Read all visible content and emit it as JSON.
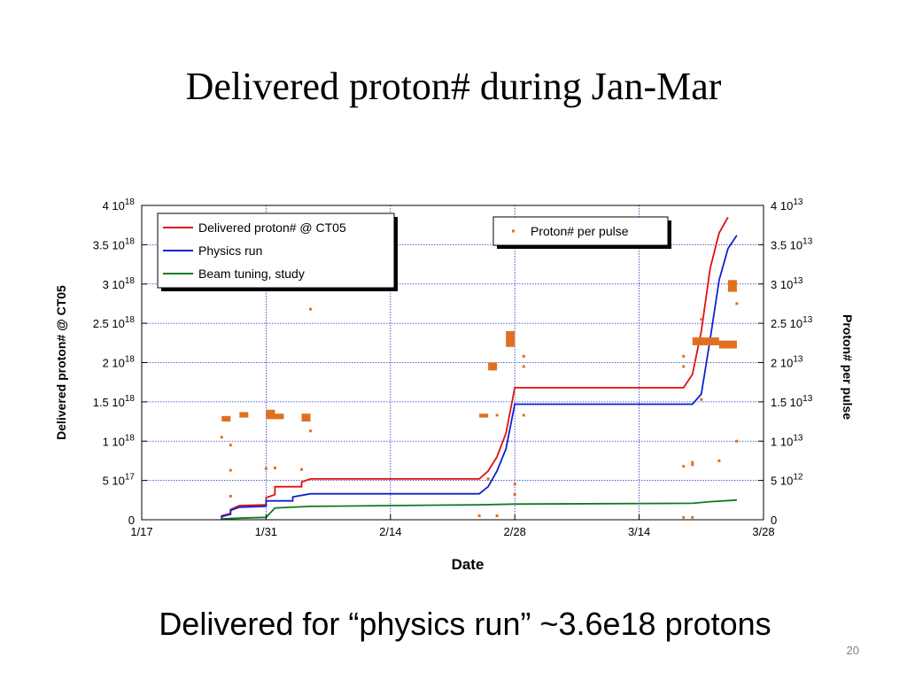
{
  "slide": {
    "title": "Delivered proton# during Jan-Mar",
    "caption": "Delivered for “physics run” ~3.6e18 protons",
    "page_number": "20"
  },
  "chart_data": {
    "type": "line",
    "x_unit": "date",
    "xlabel": "Date",
    "ylabel_left": "Delivered proton# @ CT05",
    "ylabel_right": "Proton# per pulse",
    "xlim": [
      "2011-01-17",
      "2011-03-28"
    ],
    "x_ticks": [
      {
        "x": "2011-01-17",
        "label": "1/17"
      },
      {
        "x": "2011-01-31",
        "label": "1/31"
      },
      {
        "x": "2011-02-14",
        "label": "2/14"
      },
      {
        "x": "2011-02-28",
        "label": "2/28"
      },
      {
        "x": "2011-03-14",
        "label": "3/14"
      },
      {
        "x": "2011-03-28",
        "label": "3/28"
      }
    ],
    "ylim_left": [
      0,
      4e+18
    ],
    "ylim_right": [
      0,
      40000000000000.0
    ],
    "left_ticks": [
      {
        "v": 0,
        "m": "0",
        "e": ""
      },
      {
        "v": 5e+17,
        "m": "5 10",
        "e": "17"
      },
      {
        "v": 1e+18,
        "m": "1 10",
        "e": "18"
      },
      {
        "v": 1.5e+18,
        "m": "1.5 10",
        "e": "18"
      },
      {
        "v": 2e+18,
        "m": "2 10",
        "e": "18"
      },
      {
        "v": 2.5e+18,
        "m": "2.5 10",
        "e": "18"
      },
      {
        "v": 3e+18,
        "m": "3 10",
        "e": "18"
      },
      {
        "v": 3.5e+18,
        "m": "3.5 10",
        "e": "18"
      },
      {
        "v": 4e+18,
        "m": "4 10",
        "e": "18"
      }
    ],
    "right_ticks": [
      {
        "v": 0,
        "m": "0",
        "e": ""
      },
      {
        "v": 5000000000000.0,
        "m": "5 10",
        "e": "12"
      },
      {
        "v": 10000000000000.0,
        "m": "1 10",
        "e": "13"
      },
      {
        "v": 15000000000000.0,
        "m": "1.5 10",
        "e": "13"
      },
      {
        "v": 20000000000000.0,
        "m": "2 10",
        "e": "13"
      },
      {
        "v": 25000000000000.0,
        "m": "2.5 10",
        "e": "13"
      },
      {
        "v": 30000000000000.0,
        "m": "3 10",
        "e": "13"
      },
      {
        "v": 35000000000000.0,
        "m": "3.5 10",
        "e": "13"
      },
      {
        "v": 40000000000000.0,
        "m": "4 10",
        "e": "13"
      }
    ],
    "grid": true,
    "legend_left": "top-left",
    "legend_right": "top-right",
    "series": [
      {
        "name": "Delivered proton# @ CT05",
        "color": "#e01010",
        "axis": "left",
        "points": [
          [
            "2011-01-26",
            0.0
          ],
          [
            "2011-01-26",
            5e+16
          ],
          [
            "2011-01-27",
            8e+16
          ],
          [
            "2011-01-27",
            1.3e+17
          ],
          [
            "2011-01-28",
            1.8e+17
          ],
          [
            "2011-01-31",
            1.9e+17
          ],
          [
            "2011-01-31",
            2.8e+17
          ],
          [
            "2011-02-01",
            3.2e+17
          ],
          [
            "2011-02-01",
            4.2e+17
          ],
          [
            "2011-02-04",
            4.2e+17
          ],
          [
            "2011-02-04",
            4.8e+17
          ],
          [
            "2011-02-05",
            5.2e+17
          ],
          [
            "2011-02-24",
            5.2e+17
          ],
          [
            "2011-02-25",
            6.2e+17
          ],
          [
            "2011-02-26",
            8e+17
          ],
          [
            "2011-02-27",
            1.1e+18
          ],
          [
            "2011-02-28",
            1.68e+18
          ],
          [
            "2011-03-19",
            1.68e+18
          ],
          [
            "2011-03-20",
            1.85e+18
          ],
          [
            "2011-03-21",
            2.4e+18
          ],
          [
            "2011-03-22",
            3.2e+18
          ],
          [
            "2011-03-23",
            3.65e+18
          ],
          [
            "2011-03-24",
            3.85e+18
          ]
        ]
      },
      {
        "name": "Physics run",
        "color": "#1020d0",
        "axis": "left",
        "points": [
          [
            "2011-01-26",
            0.0
          ],
          [
            "2011-01-26",
            4e+16
          ],
          [
            "2011-01-27",
            7e+16
          ],
          [
            "2011-01-27",
            1.2e+17
          ],
          [
            "2011-01-28",
            1.6e+17
          ],
          [
            "2011-01-31",
            1.7e+17
          ],
          [
            "2011-01-31",
            2.4e+17
          ],
          [
            "2011-02-03",
            2.4e+17
          ],
          [
            "2011-02-03",
            2.9e+17
          ],
          [
            "2011-02-05",
            3.3e+17
          ],
          [
            "2011-02-24",
            3.3e+17
          ],
          [
            "2011-02-25",
            4.2e+17
          ],
          [
            "2011-02-26",
            6.2e+17
          ],
          [
            "2011-02-27",
            9e+17
          ],
          [
            "2011-02-28",
            1.47e+18
          ],
          [
            "2011-03-20",
            1.47e+18
          ],
          [
            "2011-03-21",
            1.6e+18
          ],
          [
            "2011-03-22",
            2.3e+18
          ],
          [
            "2011-03-23",
            3.05e+18
          ],
          [
            "2011-03-24",
            3.45e+18
          ],
          [
            "2011-03-25",
            3.62e+18
          ]
        ]
      },
      {
        "name": "Beam tuning, study",
        "color": "#107a20",
        "axis": "left",
        "points": [
          [
            "2011-01-26",
            0.0
          ],
          [
            "2011-01-26",
            1e+16
          ],
          [
            "2011-01-28",
            2e+16
          ],
          [
            "2011-01-31",
            3e+16
          ],
          [
            "2011-02-01",
            1.5e+17
          ],
          [
            "2011-02-05",
            1.7e+17
          ],
          [
            "2011-02-24",
            1.9e+17
          ],
          [
            "2011-02-28",
            2e+17
          ],
          [
            "2011-03-20",
            2.1e+17
          ],
          [
            "2011-03-22",
            2.3e+17
          ],
          [
            "2011-03-25",
            2.5e+17
          ]
        ]
      },
      {
        "name": "Proton# per pulse",
        "color": "#e07020",
        "axis": "right",
        "marker": "dot",
        "clusters": [
          {
            "x": [
              "2011-01-26",
              "2011-01-27"
            ],
            "y": [
              12500000000000.0,
              13200000000000.0
            ]
          },
          {
            "x": [
              "2011-01-28",
              "2011-01-29"
            ],
            "y": [
              13000000000000.0,
              13700000000000.0
            ]
          },
          {
            "x": [
              "2011-01-31",
              "2011-02-01"
            ],
            "y": [
              12800000000000.0,
              14000000000000.0
            ]
          },
          {
            "x": [
              "2011-02-01",
              "2011-02-02"
            ],
            "y": [
              12800000000000.0,
              13500000000000.0
            ]
          },
          {
            "x": [
              "2011-02-04",
              "2011-02-05"
            ],
            "y": [
              12500000000000.0,
              13500000000000.0
            ]
          },
          {
            "x": [
              "2011-02-24",
              "2011-02-25"
            ],
            "y": [
              13000000000000.0,
              13500000000000.0
            ]
          },
          {
            "x": [
              "2011-02-25",
              "2011-02-26"
            ],
            "y": [
              19000000000000.0,
              20000000000000.0
            ]
          },
          {
            "x": [
              "2011-02-27",
              "2011-02-28"
            ],
            "y": [
              22000000000000.0,
              24000000000000.0
            ]
          },
          {
            "x": [
              "2011-03-20",
              "2011-03-23"
            ],
            "y": [
              22200000000000.0,
              23200000000000.0
            ]
          },
          {
            "x": [
              "2011-03-23",
              "2011-03-25"
            ],
            "y": [
              21800000000000.0,
              22800000000000.0
            ]
          },
          {
            "x": [
              "2011-03-24",
              "2011-03-25"
            ],
            "y": [
              29000000000000.0,
              30500000000000.0
            ]
          }
        ],
        "points": [
          [
            "2011-01-26",
            10500000000000.0
          ],
          [
            "2011-01-27",
            9500000000000.0
          ],
          [
            "2011-01-27",
            6300000000000.0
          ],
          [
            "2011-01-27",
            3000000000000.0
          ],
          [
            "2011-01-31",
            6500000000000.0
          ],
          [
            "2011-02-01",
            6600000000000.0
          ],
          [
            "2011-02-04",
            6400000000000.0
          ],
          [
            "2011-02-05",
            26800000000000.0
          ],
          [
            "2011-02-05",
            11300000000000.0
          ],
          [
            "2011-02-25",
            5200000000000.0
          ],
          [
            "2011-02-26",
            13300000000000.0
          ],
          [
            "2011-02-28",
            4500000000000.0
          ],
          [
            "2011-02-28",
            3200000000000.0
          ],
          [
            "2011-03-01",
            20800000000000.0
          ],
          [
            "2011-03-01",
            19500000000000.0
          ],
          [
            "2011-03-01",
            13300000000000.0
          ],
          [
            "2011-03-19",
            20800000000000.0
          ],
          [
            "2011-03-19",
            19500000000000.0
          ],
          [
            "2011-03-19",
            6800000000000.0
          ],
          [
            "2011-03-20",
            7000000000000.0
          ],
          [
            "2011-03-20",
            7300000000000.0
          ],
          [
            "2011-03-21",
            15300000000000.0
          ],
          [
            "2011-03-21",
            25500000000000.0
          ],
          [
            "2011-03-23",
            7500000000000.0
          ],
          [
            "2011-03-25",
            10000000000000.0
          ],
          [
            "2011-03-25",
            27500000000000.0
          ],
          [
            "2011-02-24",
            500000000000.0
          ],
          [
            "2011-02-26",
            500000000000.0
          ],
          [
            "2011-03-19",
            300000000000.0
          ],
          [
            "2011-03-20",
            300000000000.0
          ]
        ]
      }
    ]
  }
}
